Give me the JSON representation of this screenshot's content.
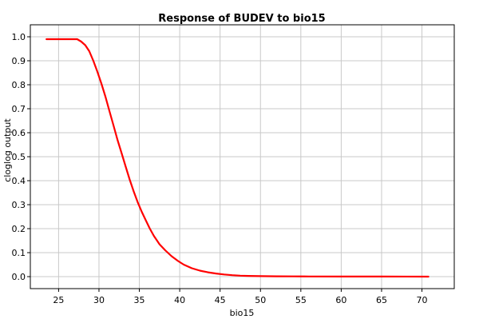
{
  "chart_data": {
    "type": "line",
    "title": "Response of BUDEV to bio15",
    "xlabel": "bio15",
    "ylabel": "cloglog output",
    "xlim": [
      21.5,
      74
    ],
    "ylim": [
      -0.05,
      1.05
    ],
    "x_ticks": [
      25,
      30,
      35,
      40,
      45,
      50,
      55,
      60,
      65,
      70
    ],
    "y_ticks": [
      0.0,
      0.1,
      0.2,
      0.3,
      0.4,
      0.5,
      0.6,
      0.7,
      0.8,
      0.9,
      1.0
    ],
    "x_tick_labels": [
      "25",
      "30",
      "35",
      "40",
      "45",
      "50",
      "55",
      "60",
      "65",
      "70"
    ],
    "y_tick_labels": [
      "0.0",
      "0.1",
      "0.2",
      "0.3",
      "0.4",
      "0.5",
      "0.6",
      "0.7",
      "0.8",
      "0.9",
      "1.0"
    ],
    "grid": true,
    "series": [
      {
        "color": "#ff0000",
        "x": [
          23.5,
          25,
          26,
          27,
          27.3,
          27.8,
          28.3,
          28.8,
          29.3,
          29.8,
          30.3,
          30.8,
          31.3,
          31.8,
          32.3,
          32.8,
          33.3,
          33.8,
          34.3,
          34.8,
          35.3,
          35.8,
          36.3,
          36.8,
          37.5,
          38.2,
          39.0,
          39.8,
          40.5,
          41.5,
          42.5,
          43.5,
          44.5,
          45.5,
          46.5,
          47.5,
          48.5,
          50,
          52,
          54,
          56,
          60,
          65,
          70.8
        ],
        "y": [
          0.99,
          0.99,
          0.99,
          0.99,
          0.99,
          0.98,
          0.965,
          0.94,
          0.9,
          0.855,
          0.805,
          0.75,
          0.69,
          0.63,
          0.57,
          0.515,
          0.46,
          0.405,
          0.355,
          0.31,
          0.27,
          0.235,
          0.2,
          0.17,
          0.135,
          0.11,
          0.085,
          0.065,
          0.05,
          0.035,
          0.025,
          0.018,
          0.013,
          0.009,
          0.006,
          0.004,
          0.003,
          0.002,
          0.0015,
          0.001,
          0.0008,
          0.0005,
          0.0003,
          0.0001
        ]
      }
    ]
  }
}
